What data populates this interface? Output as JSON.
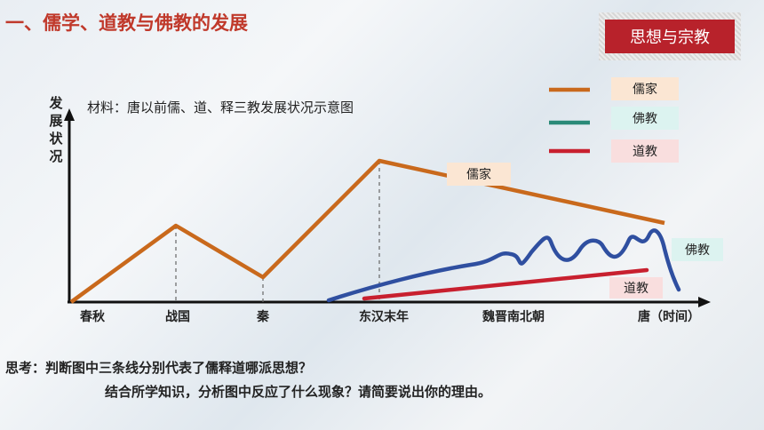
{
  "header": {
    "title": "一、儒学、道教与佛教的发展",
    "badge": "思想与宗教"
  },
  "chart": {
    "ylabel": "发展状况",
    "material": "材料：唐以前儒、道、释三教发展状况示意图",
    "legend": [
      {
        "label": "儒家",
        "color": "#c9691c",
        "bg": "#fbe6d3"
      },
      {
        "label": "佛教",
        "color": "#2a8a78",
        "bg": "#dcf3f0"
      },
      {
        "label": "道教",
        "color": "#c8202f",
        "bg": "#f9dede"
      }
    ],
    "line_labels": {
      "confucian": "儒家",
      "buddhism": "佛教",
      "taoism": "道教"
    },
    "x_ticks": [
      "春秋",
      "战国",
      "秦",
      "东汉末年",
      "魏晋南北朝"
    ],
    "x_end_label": "唐（时间）"
  },
  "chart_data": {
    "type": "line",
    "categories": [
      "春秋",
      "战国",
      "秦",
      "东汉末年",
      "魏晋南北朝",
      "唐"
    ],
    "series": [
      {
        "name": "儒家",
        "values": [
          0,
          0.49,
          0.16,
          0.88,
          null,
          0.49
        ]
      },
      {
        "name": "佛教",
        "values": [
          null,
          null,
          null,
          0.01,
          0.22,
          0.1
        ]
      },
      {
        "name": "道教",
        "values": [
          null,
          null,
          null,
          0.02,
          0.16,
          0.19
        ]
      }
    ]
  },
  "questions": {
    "line1": "思考：判断图中三条线分别代表了儒释道哪派思想？",
    "line2": "结合所学知识，分析图中反应了什么现象？请简要说出你的理由。"
  }
}
